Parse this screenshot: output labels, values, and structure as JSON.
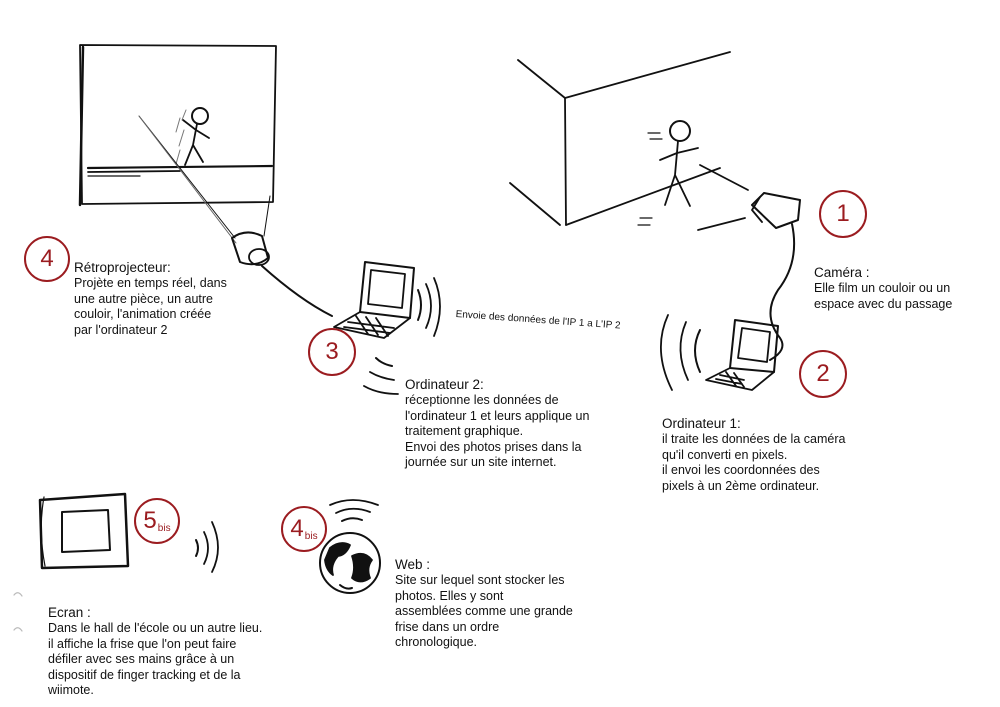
{
  "colors": {
    "badge": "#9b1c20",
    "ink": "#111111"
  },
  "badges": {
    "b1": {
      "num": "1",
      "sup": ""
    },
    "b2": {
      "num": "2",
      "sup": ""
    },
    "b3": {
      "num": "3",
      "sup": ""
    },
    "b4": {
      "num": "4",
      "sup": ""
    },
    "b5bis": {
      "num": "5",
      "sup": "bis"
    },
    "b4bis": {
      "num": "4",
      "sup": "bis"
    }
  },
  "retroprojecteur": {
    "title": "Rétroprojecteur:",
    "body": "Projète en temps réel, dans\nune autre pièce, un autre\ncouloir,  l'animation créée\npar l'ordinateur 2"
  },
  "camera": {
    "title": "Caméra :",
    "body": "Elle film un couloir ou un\nespace avec du passage"
  },
  "ordinateur2": {
    "title": "Ordinateur 2:",
    "body": "réceptionne les données de\nl'ordinateur 1 et leurs applique un\ntraitement graphique.\nEnvoi des photos prises dans la\njournée sur un site internet."
  },
  "ordinateur1": {
    "title": "Ordinateur 1:",
    "body": "il traite les données de la caméra\nqu'il converti en pixels.\nil envoi les coordonnées des\npixels à un 2ème ordinateur."
  },
  "transfer_label": "Envoie des données de l'IP 1 a L'IP 2",
  "ecran": {
    "title": "Ecran :",
    "body": "Dans le hall de l'école ou un autre lieu.\nil affiche la frise que l'on peut faire\ndéfiler avec ses mains grâce à un\ndispositif de finger tracking et de la\nwiimote."
  },
  "web": {
    "title": "Web :",
    "body": "Site sur lequel sont stocker les\nphotos. Elles y sont\nassemblées comme une grande\nfrise dans un ordre\nchronologique."
  }
}
